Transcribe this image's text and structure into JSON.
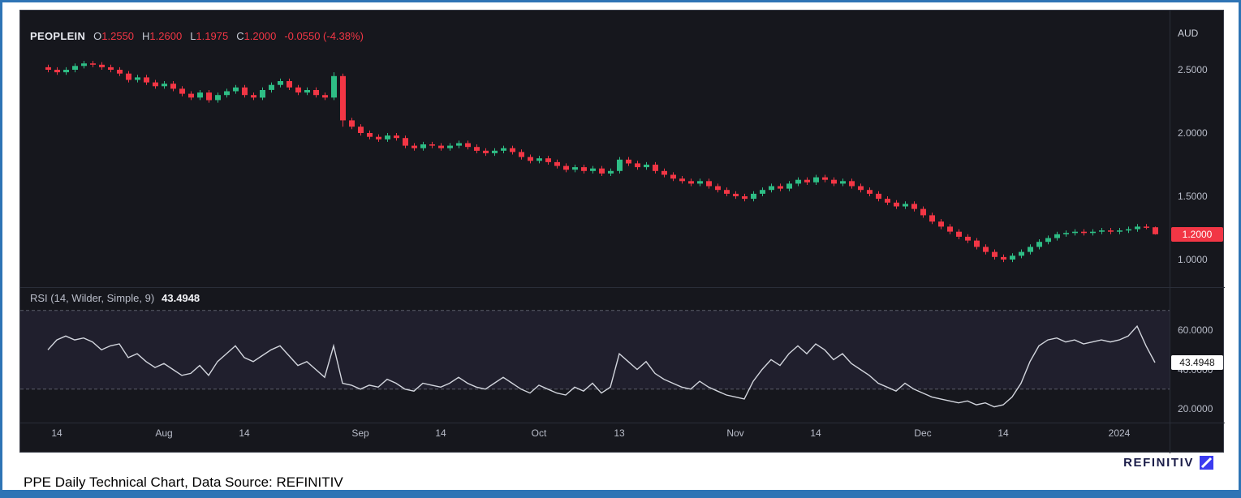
{
  "window": {
    "caption": "PPE Daily Technical Chart, Data Source: REFINITIV",
    "brand": "REFINITIV"
  },
  "colors": {
    "frame_blue": "#2e74b5",
    "chart_bg": "#16171d",
    "up": "#2ebd85",
    "down": "#f23645",
    "rsi_line": "#d2d5dd",
    "band_fill": "rgba(126,108,189,0.10)",
    "band_line": "#5a5e6b",
    "grid": "#2a2e39",
    "badge_price_bg": "#f23645",
    "badge_rsi_bg": "#ffffff"
  },
  "legend": {
    "symbol": "PEOPLEIN",
    "fields": [
      {
        "k": "O",
        "v": "1.2550"
      },
      {
        "k": "H",
        "v": "1.2600"
      },
      {
        "k": "L",
        "v": "1.1975"
      },
      {
        "k": "C",
        "v": "1.2000"
      }
    ],
    "change": "-0.0550 (-4.38%)"
  },
  "rsi": {
    "label": "RSI (14, Wilder, Simple, 9)",
    "value": "43.4948"
  },
  "chart_data": [
    {
      "type": "candlestick",
      "name": "PEOPLEIN daily price",
      "currency": "AUD",
      "ylim": [
        0.8,
        2.87
      ],
      "y_axis": {
        "ticks": [
          {
            "label": "2.5000",
            "value": 2.5
          },
          {
            "label": "2.0000",
            "value": 2.0
          },
          {
            "label": "1.5000",
            "value": 1.5
          },
          {
            "label": "1.0000",
            "value": 1.0
          }
        ],
        "badge": {
          "label": "1.2000",
          "value": 1.2
        }
      },
      "x_axis": {
        "ticks": [
          {
            "label": "14",
            "i": 1
          },
          {
            "label": "Aug",
            "i": 13
          },
          {
            "label": "14",
            "i": 22
          },
          {
            "label": "Sep",
            "i": 35
          },
          {
            "label": "14",
            "i": 44
          },
          {
            "label": "Oct",
            "i": 55
          },
          {
            "label": "13",
            "i": 64
          },
          {
            "label": "Nov",
            "i": 77
          },
          {
            "label": "14",
            "i": 86
          },
          {
            "label": "Dec",
            "i": 98
          },
          {
            "label": "14",
            "i": 107
          },
          {
            "label": "2024",
            "i": 120
          }
        ]
      },
      "ohlc": [
        [
          2.52,
          2.54,
          2.48,
          2.5
        ],
        [
          2.5,
          2.52,
          2.46,
          2.48
        ],
        [
          2.48,
          2.52,
          2.46,
          2.5
        ],
        [
          2.5,
          2.55,
          2.48,
          2.53
        ],
        [
          2.53,
          2.57,
          2.51,
          2.55
        ],
        [
          2.55,
          2.57,
          2.52,
          2.54
        ],
        [
          2.54,
          2.56,
          2.5,
          2.52
        ],
        [
          2.52,
          2.54,
          2.48,
          2.5
        ],
        [
          2.5,
          2.52,
          2.45,
          2.47
        ],
        [
          2.47,
          2.49,
          2.4,
          2.42
        ],
        [
          2.42,
          2.46,
          2.4,
          2.44
        ],
        [
          2.44,
          2.46,
          2.38,
          2.4
        ],
        [
          2.4,
          2.42,
          2.35,
          2.37
        ],
        [
          2.37,
          2.41,
          2.35,
          2.39
        ],
        [
          2.39,
          2.41,
          2.33,
          2.35
        ],
        [
          2.35,
          2.37,
          2.29,
          2.31
        ],
        [
          2.31,
          2.33,
          2.26,
          2.28
        ],
        [
          2.28,
          2.34,
          2.26,
          2.32
        ],
        [
          2.32,
          2.34,
          2.24,
          2.26
        ],
        [
          2.26,
          2.32,
          2.24,
          2.3
        ],
        [
          2.3,
          2.35,
          2.28,
          2.33
        ],
        [
          2.33,
          2.38,
          2.31,
          2.36
        ],
        [
          2.36,
          2.38,
          2.28,
          2.3
        ],
        [
          2.3,
          2.32,
          2.26,
          2.28
        ],
        [
          2.28,
          2.36,
          2.26,
          2.34
        ],
        [
          2.34,
          2.4,
          2.32,
          2.38
        ],
        [
          2.38,
          2.43,
          2.36,
          2.41
        ],
        [
          2.41,
          2.43,
          2.34,
          2.36
        ],
        [
          2.36,
          2.38,
          2.3,
          2.32
        ],
        [
          2.32,
          2.36,
          2.3,
          2.34
        ],
        [
          2.34,
          2.36,
          2.28,
          2.3
        ],
        [
          2.3,
          2.32,
          2.26,
          2.28
        ],
        [
          2.28,
          2.48,
          2.26,
          2.45
        ],
        [
          2.45,
          2.47,
          2.05,
          2.1
        ],
        [
          2.1,
          2.12,
          2.03,
          2.05
        ],
        [
          2.05,
          2.07,
          1.98,
          2.0
        ],
        [
          2.0,
          2.02,
          1.95,
          1.97
        ],
        [
          1.97,
          1.99,
          1.93,
          1.95
        ],
        [
          1.95,
          2.0,
          1.93,
          1.98
        ],
        [
          1.98,
          2.0,
          1.94,
          1.96
        ],
        [
          1.96,
          1.98,
          1.88,
          1.9
        ],
        [
          1.9,
          1.92,
          1.86,
          1.88
        ],
        [
          1.88,
          1.93,
          1.86,
          1.91
        ],
        [
          1.91,
          1.93,
          1.88,
          1.9
        ],
        [
          1.9,
          1.92,
          1.86,
          1.88
        ],
        [
          1.88,
          1.92,
          1.86,
          1.9
        ],
        [
          1.9,
          1.94,
          1.88,
          1.92
        ],
        [
          1.92,
          1.94,
          1.87,
          1.89
        ],
        [
          1.89,
          1.91,
          1.84,
          1.86
        ],
        [
          1.86,
          1.88,
          1.82,
          1.84
        ],
        [
          1.84,
          1.88,
          1.82,
          1.86
        ],
        [
          1.86,
          1.9,
          1.84,
          1.88
        ],
        [
          1.88,
          1.9,
          1.83,
          1.85
        ],
        [
          1.85,
          1.87,
          1.79,
          1.81
        ],
        [
          1.81,
          1.83,
          1.76,
          1.78
        ],
        [
          1.78,
          1.82,
          1.76,
          1.8
        ],
        [
          1.8,
          1.82,
          1.75,
          1.77
        ],
        [
          1.77,
          1.79,
          1.72,
          1.74
        ],
        [
          1.74,
          1.76,
          1.69,
          1.71
        ],
        [
          1.71,
          1.75,
          1.69,
          1.73
        ],
        [
          1.73,
          1.75,
          1.68,
          1.7
        ],
        [
          1.7,
          1.74,
          1.68,
          1.72
        ],
        [
          1.72,
          1.74,
          1.66,
          1.68
        ],
        [
          1.68,
          1.72,
          1.66,
          1.7
        ],
        [
          1.7,
          1.81,
          1.68,
          1.79
        ],
        [
          1.79,
          1.81,
          1.74,
          1.76
        ],
        [
          1.76,
          1.78,
          1.71,
          1.73
        ],
        [
          1.73,
          1.77,
          1.71,
          1.75
        ],
        [
          1.75,
          1.77,
          1.68,
          1.7
        ],
        [
          1.7,
          1.72,
          1.65,
          1.67
        ],
        [
          1.67,
          1.69,
          1.62,
          1.64
        ],
        [
          1.64,
          1.66,
          1.6,
          1.62
        ],
        [
          1.62,
          1.64,
          1.58,
          1.6
        ],
        [
          1.6,
          1.64,
          1.58,
          1.62
        ],
        [
          1.62,
          1.64,
          1.56,
          1.58
        ],
        [
          1.58,
          1.6,
          1.53,
          1.55
        ],
        [
          1.55,
          1.57,
          1.5,
          1.52
        ],
        [
          1.52,
          1.54,
          1.48,
          1.5
        ],
        [
          1.5,
          1.52,
          1.46,
          1.48
        ],
        [
          1.48,
          1.54,
          1.46,
          1.52
        ],
        [
          1.52,
          1.57,
          1.5,
          1.55
        ],
        [
          1.55,
          1.6,
          1.53,
          1.58
        ],
        [
          1.58,
          1.6,
          1.54,
          1.56
        ],
        [
          1.56,
          1.62,
          1.54,
          1.6
        ],
        [
          1.6,
          1.65,
          1.58,
          1.63
        ],
        [
          1.63,
          1.65,
          1.59,
          1.61
        ],
        [
          1.61,
          1.67,
          1.59,
          1.65
        ],
        [
          1.65,
          1.67,
          1.61,
          1.63
        ],
        [
          1.63,
          1.65,
          1.58,
          1.6
        ],
        [
          1.6,
          1.64,
          1.58,
          1.62
        ],
        [
          1.62,
          1.64,
          1.56,
          1.58
        ],
        [
          1.58,
          1.6,
          1.53,
          1.55
        ],
        [
          1.55,
          1.57,
          1.5,
          1.52
        ],
        [
          1.52,
          1.54,
          1.46,
          1.48
        ],
        [
          1.48,
          1.5,
          1.43,
          1.45
        ],
        [
          1.45,
          1.47,
          1.4,
          1.42
        ],
        [
          1.42,
          1.46,
          1.4,
          1.44
        ],
        [
          1.44,
          1.46,
          1.38,
          1.4
        ],
        [
          1.4,
          1.42,
          1.33,
          1.35
        ],
        [
          1.35,
          1.37,
          1.28,
          1.3
        ],
        [
          1.3,
          1.32,
          1.24,
          1.26
        ],
        [
          1.26,
          1.28,
          1.2,
          1.22
        ],
        [
          1.22,
          1.24,
          1.16,
          1.18
        ],
        [
          1.18,
          1.2,
          1.13,
          1.15
        ],
        [
          1.15,
          1.17,
          1.08,
          1.1
        ],
        [
          1.1,
          1.12,
          1.04,
          1.06
        ],
        [
          1.06,
          1.08,
          1.0,
          1.02
        ],
        [
          1.02,
          1.04,
          0.98,
          1.0
        ],
        [
          1.0,
          1.05,
          0.98,
          1.03
        ],
        [
          1.03,
          1.08,
          1.01,
          1.06
        ],
        [
          1.06,
          1.12,
          1.04,
          1.1
        ],
        [
          1.1,
          1.16,
          1.08,
          1.14
        ],
        [
          1.14,
          1.19,
          1.12,
          1.17
        ],
        [
          1.17,
          1.22,
          1.15,
          1.2
        ],
        [
          1.2,
          1.23,
          1.18,
          1.21
        ],
        [
          1.21,
          1.24,
          1.19,
          1.22
        ],
        [
          1.22,
          1.24,
          1.19,
          1.21
        ],
        [
          1.21,
          1.24,
          1.19,
          1.22
        ],
        [
          1.22,
          1.25,
          1.2,
          1.23
        ],
        [
          1.23,
          1.25,
          1.2,
          1.22
        ],
        [
          1.22,
          1.25,
          1.2,
          1.23
        ],
        [
          1.23,
          1.26,
          1.21,
          1.24
        ],
        [
          1.24,
          1.28,
          1.22,
          1.26
        ],
        [
          1.26,
          1.28,
          1.24,
          1.255
        ],
        [
          1.255,
          1.26,
          1.1975,
          1.2
        ]
      ]
    },
    {
      "type": "line",
      "name": "RSI (14, Wilder, Simple, 9)",
      "ylim": [
        14,
        76
      ],
      "bands": [
        30,
        70
      ],
      "last": 43.4948,
      "y_axis": {
        "ticks": [
          {
            "label": "60.0000",
            "value": 60
          },
          {
            "label": "40.0000",
            "value": 40
          },
          {
            "label": "20.0000",
            "value": 20
          }
        ],
        "badge": {
          "label": "43.4948",
          "value": 43.4948
        }
      },
      "values": [
        50,
        55,
        57,
        55,
        56,
        54,
        50,
        52,
        53,
        46,
        48,
        44,
        41,
        43,
        40,
        37,
        38,
        42,
        37,
        44,
        48,
        52,
        46,
        44,
        47,
        50,
        52,
        47,
        42,
        44,
        40,
        36,
        52,
        33,
        32,
        30,
        32,
        31,
        35,
        33,
        30,
        29,
        33,
        32,
        31,
        33,
        36,
        33,
        31,
        30,
        33,
        36,
        33,
        30,
        28,
        32,
        30,
        28,
        27,
        31,
        29,
        33,
        28,
        31,
        48,
        44,
        40,
        44,
        38,
        35,
        33,
        31,
        30,
        34,
        31,
        29,
        27,
        26,
        25,
        34,
        40,
        45,
        42,
        48,
        52,
        48,
        53,
        50,
        45,
        48,
        43,
        40,
        37,
        33,
        31,
        29,
        33,
        30,
        28,
        26,
        25,
        24,
        23,
        24,
        22,
        23,
        21,
        22,
        26,
        33,
        44,
        52,
        55,
        56,
        54,
        55,
        53,
        54,
        55,
        54,
        55,
        57,
        62,
        52,
        43.4948
      ]
    }
  ]
}
